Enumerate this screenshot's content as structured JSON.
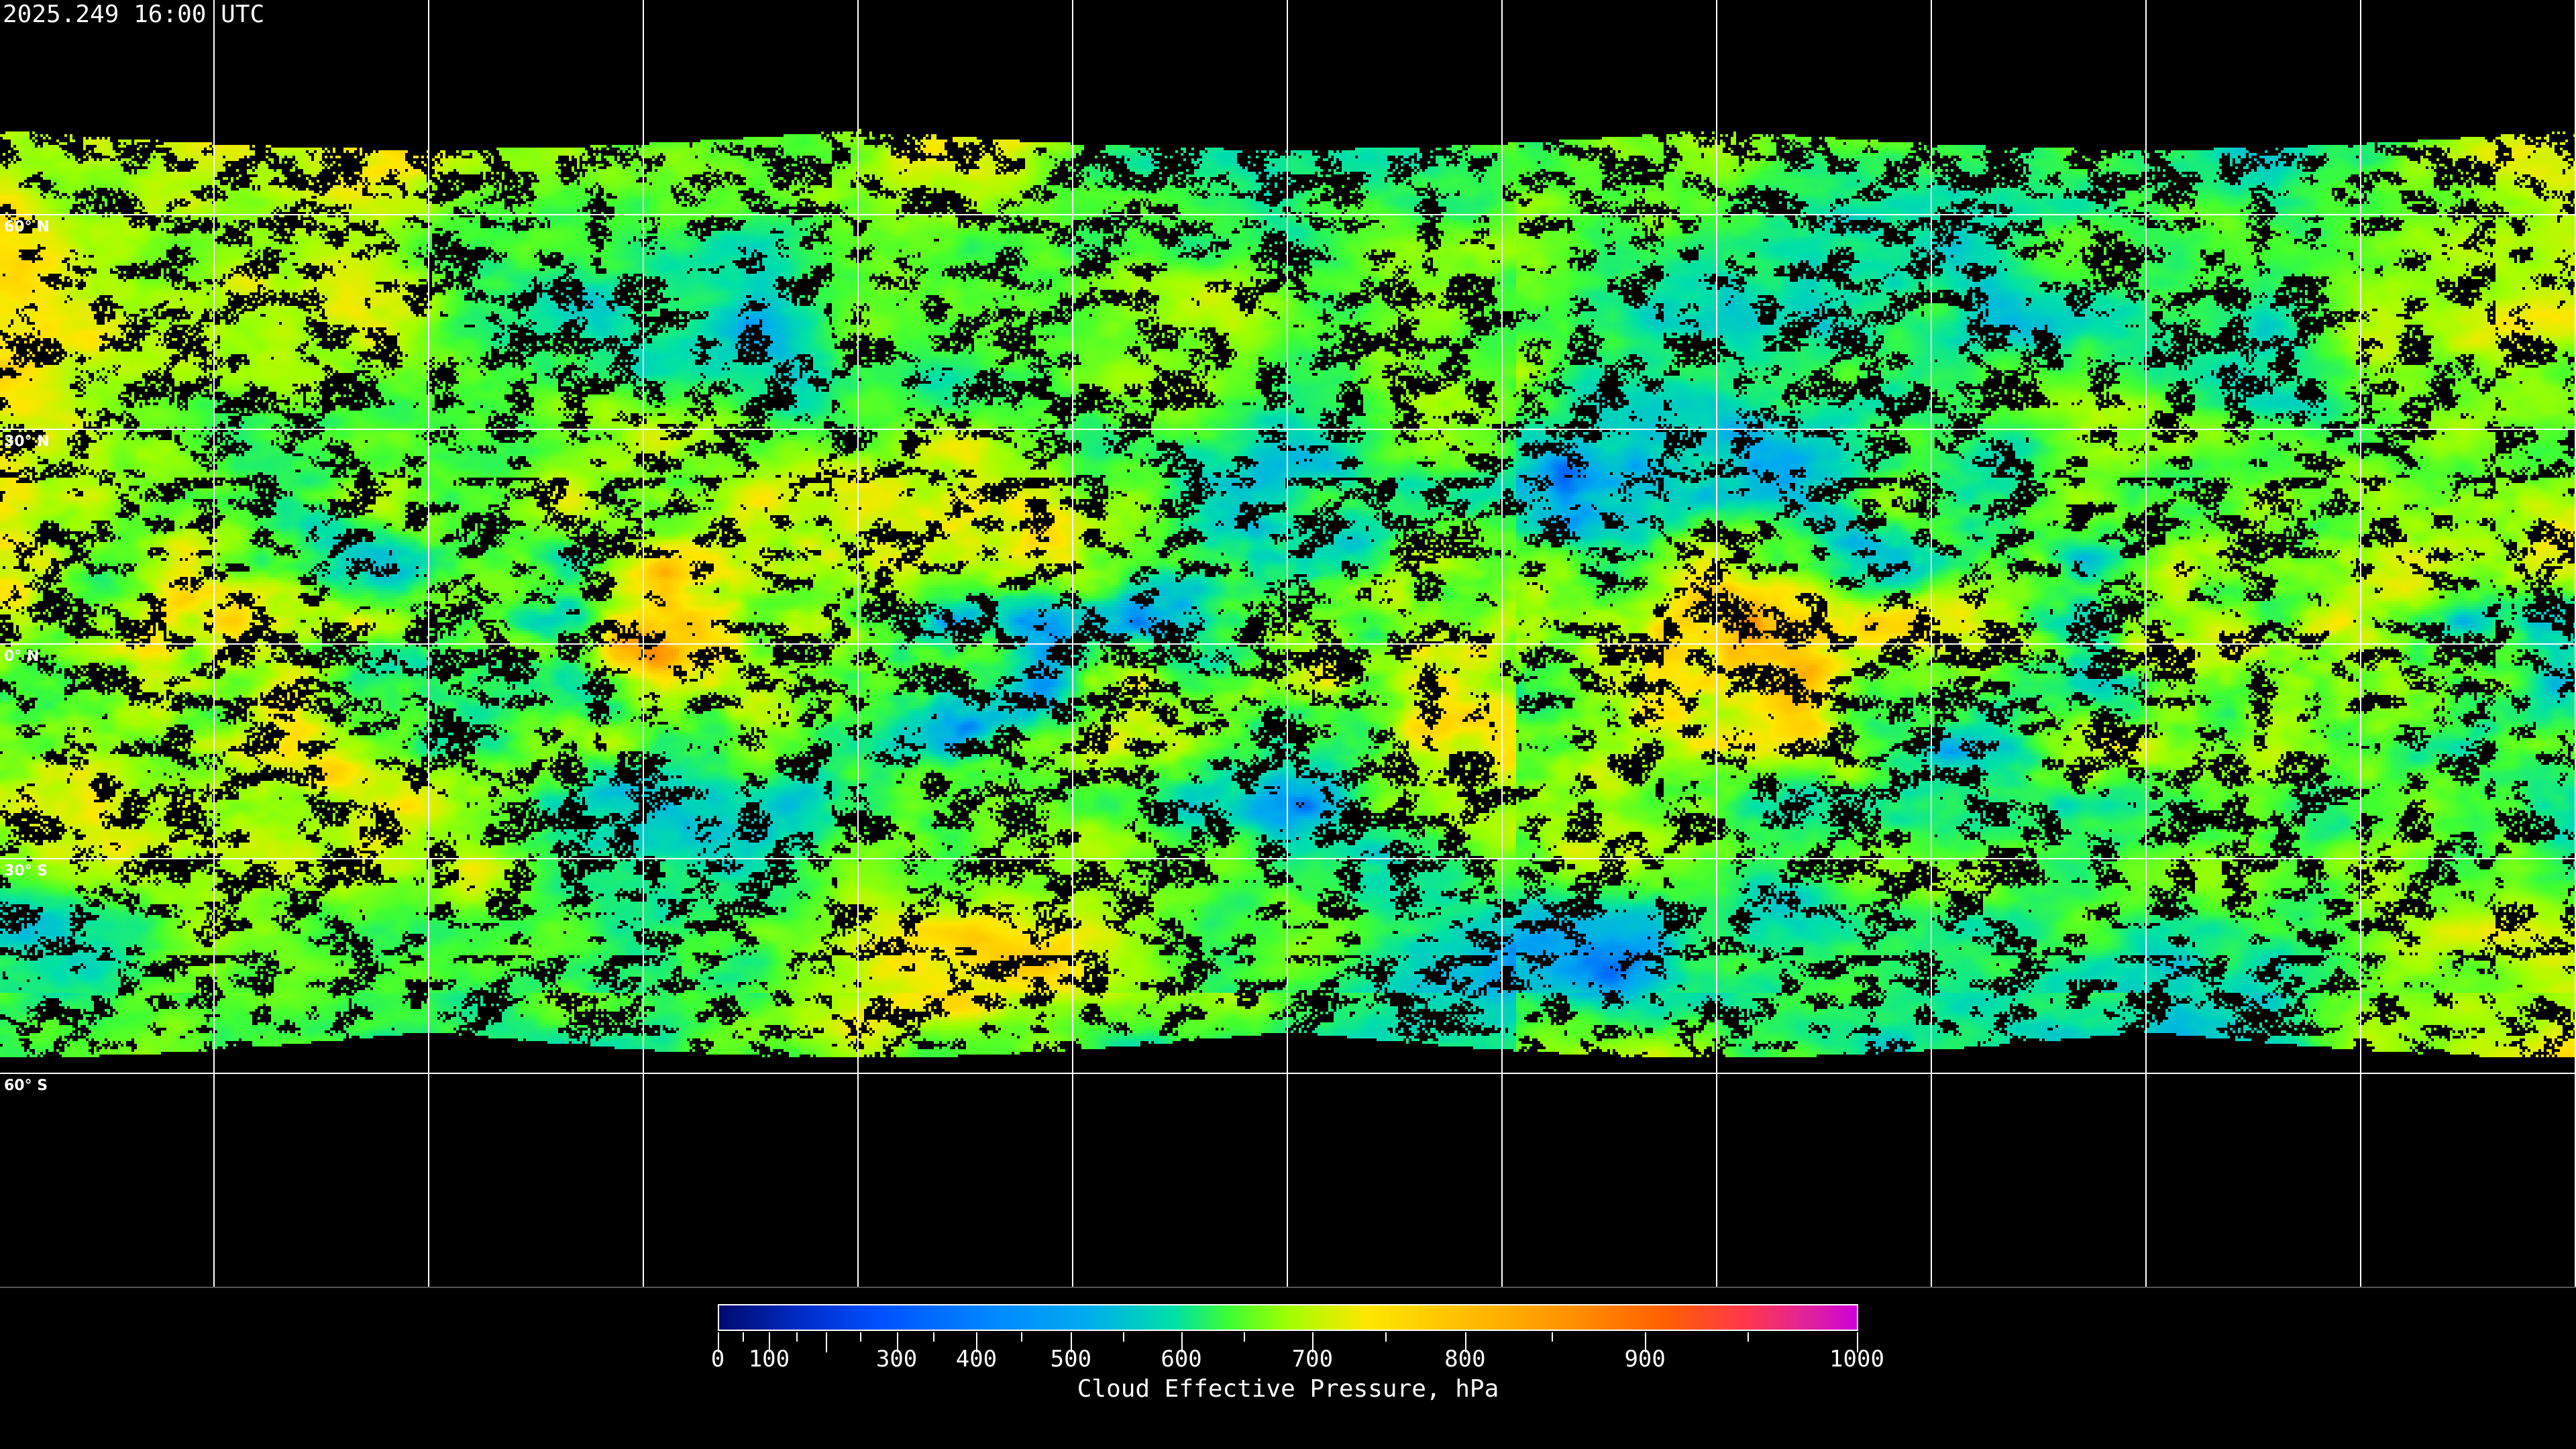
{
  "title": "2025.249 16:00 UTC",
  "map": {
    "projection": "equirectangular",
    "latitude_labels": [
      "60° N",
      "30° N",
      "0° N",
      "30° S",
      "60° S"
    ],
    "grid_spacing_degrees": 30,
    "background_color": "#000000",
    "gridline_color": "#ffffff",
    "coastline_color": "#ffffff"
  },
  "colorbar": {
    "title": "Cloud Effective Pressure, hPa",
    "min": 0,
    "max": 1000,
    "tick_labels": [
      "0",
      "100",
      "300",
      "400",
      "500",
      "600",
      "700",
      "800",
      "900",
      "1000"
    ],
    "colors": [
      "#000a6e",
      "#0050ff",
      "#00aaf0",
      "#00e0a8",
      "#40ff30",
      "#a0ff00",
      "#ffe600",
      "#ffbc00",
      "#ff6000",
      "#ff3848",
      "#d000d8"
    ]
  }
}
